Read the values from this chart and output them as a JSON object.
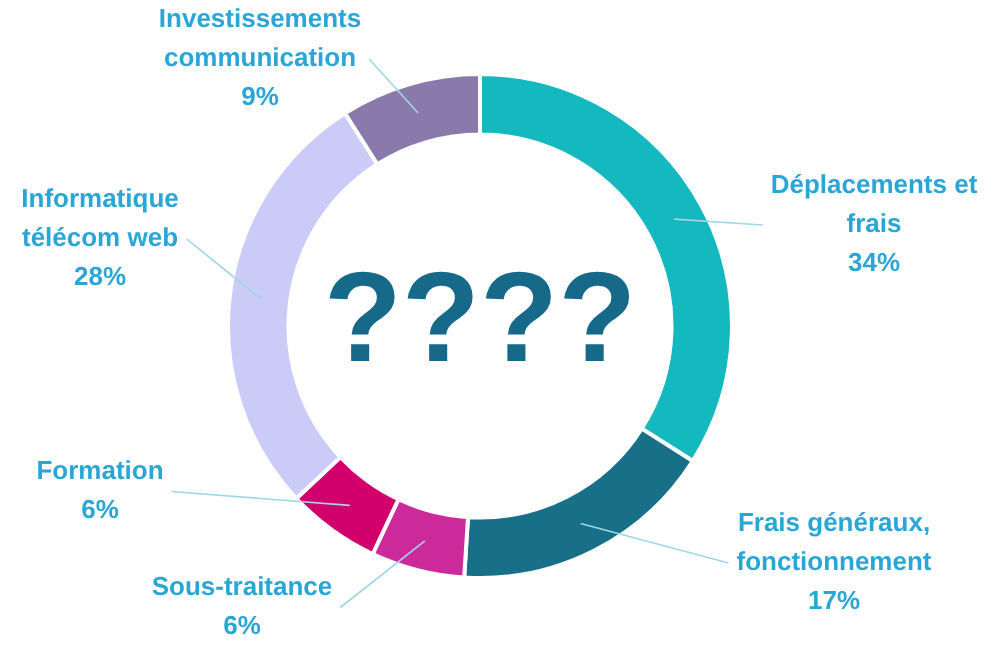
{
  "chart_data": {
    "type": "donut",
    "categories": [
      "Déplacements et frais",
      "Frais généraux, fonctionnement",
      "Sous-traitance",
      "Formation",
      "Informatique télécom web",
      "Investissements communication"
    ],
    "values": [
      34,
      17,
      6,
      6,
      28,
      9
    ],
    "value_labels": [
      "34%",
      "17%",
      "6%",
      "6%",
      "28%",
      "9%"
    ],
    "colors": [
      "#13b9bf",
      "#176f88",
      "#cc2a9a",
      "#d2006c",
      "#cbcbf7",
      "#8a79ab"
    ],
    "annotations": [
      "????"
    ],
    "legend": false
  }
}
